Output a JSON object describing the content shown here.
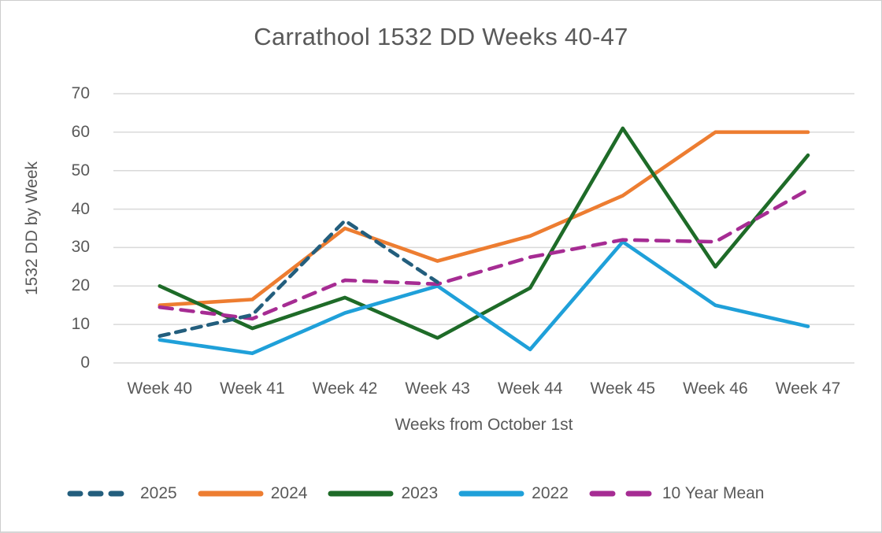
{
  "window": {
    "background": "#ffffff",
    "border_color": "#cdcdcd",
    "text_color": "#595959",
    "grid_color": "#d9d9d9"
  },
  "chart_data": {
    "type": "line",
    "title": "Carrathool 1532 DD Weeks 40-47",
    "xlabel": "Weeks from October 1st",
    "ylabel": "1532 DD by Week",
    "categories": [
      "Week 40",
      "Week 41",
      "Week 42",
      "Week 43",
      "Week 44",
      "Week 45",
      "Week 46",
      "Week 47"
    ],
    "y_ticks": [
      0,
      10,
      20,
      30,
      40,
      50,
      60,
      70
    ],
    "ylim": [
      0,
      70
    ],
    "grid": "horizontal",
    "legend_position": "bottom",
    "draw_order": [
      1,
      2,
      3,
      4,
      0
    ],
    "series": [
      {
        "name": "2025",
        "color": "#235e7d",
        "dash": true,
        "dash_pattern": "12 9",
        "legend_dash_pattern": "13 13",
        "values": [
          7,
          12.5,
          37,
          21,
          null,
          null,
          null,
          null
        ]
      },
      {
        "name": "2024",
        "color": "#ed7d31",
        "dash": false,
        "dash_pattern": null,
        "legend_dash_pattern": null,
        "values": [
          15,
          16.5,
          35,
          26.5,
          33,
          43.5,
          60,
          60
        ]
      },
      {
        "name": "2023",
        "color": "#1e6b28",
        "dash": false,
        "dash_pattern": null,
        "legend_dash_pattern": null,
        "values": [
          20,
          9,
          17,
          6.5,
          19.5,
          61,
          25,
          54
        ]
      },
      {
        "name": "2022",
        "color": "#1fa0d9",
        "dash": false,
        "dash_pattern": null,
        "legend_dash_pattern": null,
        "values": [
          6,
          2.5,
          13,
          20,
          3.5,
          31.5,
          15,
          9.5
        ]
      },
      {
        "name": "10 Year Mean",
        "color": "#a62c93",
        "dash": true,
        "dash_pattern": "16 11",
        "legend_dash_pattern": "26 20",
        "values": [
          14.5,
          11.5,
          21.5,
          20.5,
          27.5,
          32,
          31.5,
          45
        ]
      }
    ]
  }
}
